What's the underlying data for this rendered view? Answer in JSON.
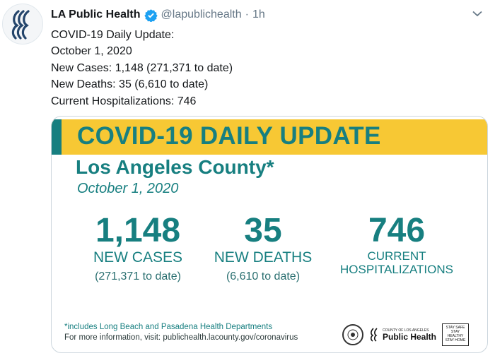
{
  "tweet": {
    "display_name": "LA Public Health",
    "handle": "@lapublichealth",
    "separator": "·",
    "time": "1h",
    "lines": [
      "COVID-19 Daily Update:",
      "October 1, 2020",
      "New Cases: 1,148 (271,371 to date)",
      "New Deaths: 35 (6,610 to date)",
      "Current Hospitalizations: 746"
    ]
  },
  "graphic": {
    "banner_title": "COVID-19 DAILY UPDATE",
    "county": "Los Angeles County*",
    "date": "October 1, 2020",
    "stats": [
      {
        "number": "1,148",
        "label": "NEW CASES",
        "sub": "(271,371 to date)"
      },
      {
        "number": "35",
        "label": "NEW DEATHS",
        "sub": "(6,610 to date)"
      },
      {
        "number": "746",
        "label_line1": "CURRENT",
        "label_line2": "HOSPITALIZATIONS"
      }
    ],
    "footnote": "*includes Long Beach and Pasadena Health Departments",
    "more_info": "For more information, visit: publichealth.lacounty.gov/coronavirus",
    "logos": {
      "ph_small": "COUNTY OF LOS ANGELES",
      "ph_big": "Public Health",
      "staysafe": [
        "STAY SAFE",
        "STAY HEALTHY",
        "STAY HOME"
      ]
    }
  },
  "colors": {
    "teal": "#177f80",
    "yellow": "#f7c834",
    "verified": "#1da1f2"
  },
  "icons": [
    "avatar-logo-icon",
    "verified-badge-icon",
    "chevron-down-icon",
    "county-seal-icon",
    "public-health-logo-icon",
    "stay-safe-badge-icon"
  ]
}
